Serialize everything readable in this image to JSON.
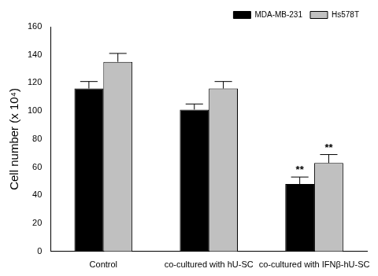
{
  "chart_data": {
    "type": "bar",
    "y_label": "Cell number (x 10⁴)",
    "categories": [
      "Control",
      "co-cultured with hU-SC",
      "co-cultured with IFNβ-hU-SC"
    ],
    "series": [
      {
        "name": "MDA-MB-231",
        "color": "#000000",
        "values": [
          116,
          101,
          48
        ],
        "errors": [
          5,
          4,
          5
        ]
      },
      {
        "name": "Hs578T",
        "color": "#c0c0c0",
        "values": [
          135,
          116,
          63
        ],
        "errors": [
          6,
          5,
          6
        ]
      }
    ],
    "annotations": [
      {
        "text": "**",
        "category": "co-cultured with IFNβ-hU-SC",
        "series": "MDA-MB-231"
      },
      {
        "text": "**",
        "category": "co-cultured with IFNβ-hU-SC",
        "series": "Hs578T"
      }
    ],
    "ylim": [
      0,
      160
    ],
    "yticks": [
      0,
      20,
      40,
      60,
      80,
      100,
      120,
      140,
      160
    ],
    "grid": false,
    "legend": "upper right"
  }
}
